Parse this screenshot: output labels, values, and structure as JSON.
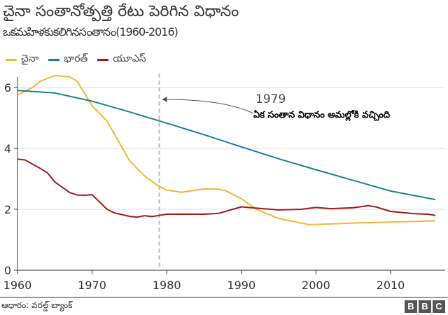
{
  "title": "చైనా సంతానోత్పత్తి రేటు పెరిగిన విధానం",
  "subtitle": "ఒకమహిళకుకలిగినసంతానం(1960-2016)",
  "source": "ఆధారం: వరల్డ్ బ్యాంక్",
  "logo": "BBC",
  "chart_data": {
    "type": "line",
    "xlim": [
      1960,
      2017
    ],
    "ylim": [
      0,
      6.5
    ],
    "xticks": [
      1960,
      1970,
      1980,
      1990,
      2000,
      2010
    ],
    "yticks": [
      0,
      2,
      4,
      6
    ],
    "grid": true,
    "legend": "top-left",
    "annotation": {
      "x": 1979,
      "year_label": "1979",
      "text": "ఏక సంతాన విధానం అమల్లోకి వచ్చింది"
    },
    "series": [
      {
        "name": "చైనా",
        "color": "#f2b632",
        "x": [
          1960,
          1962,
          1963,
          1965,
          1967,
          1968,
          1970,
          1972,
          1975,
          1977,
          1979,
          1980,
          1982,
          1985,
          1987,
          1988,
          1990,
          1992,
          1995,
          1999,
          2000,
          2005,
          2010,
          2016
        ],
        "y": [
          5.75,
          6.0,
          6.2,
          6.39,
          6.35,
          6.2,
          5.4,
          4.9,
          3.6,
          3.1,
          2.75,
          2.63,
          2.56,
          2.67,
          2.66,
          2.6,
          2.35,
          2.0,
          1.7,
          1.5,
          1.5,
          1.55,
          1.58,
          1.62
        ]
      },
      {
        "name": "భారత్",
        "color": "#1a7f9c",
        "x": [
          1960,
          1965,
          1970,
          1975,
          1980,
          1985,
          1990,
          1995,
          2000,
          2005,
          2010,
          2016
        ],
        "y": [
          5.9,
          5.82,
          5.55,
          5.2,
          4.83,
          4.45,
          4.05,
          3.66,
          3.3,
          2.95,
          2.6,
          2.32
        ]
      },
      {
        "name": "యూఎస్",
        "color": "#a01a1a",
        "x": [
          1960,
          1961,
          1963,
          1964,
          1965,
          1967,
          1968,
          1969,
          1970,
          1972,
          1973,
          1975,
          1976,
          1977,
          1978,
          1980,
          1985,
          1987,
          1990,
          1995,
          1998,
          2000,
          2002,
          2005,
          2007,
          2008,
          2010,
          2013,
          2015,
          2016
        ],
        "y": [
          3.65,
          3.62,
          3.35,
          3.2,
          2.9,
          2.55,
          2.47,
          2.46,
          2.48,
          2.0,
          1.88,
          1.77,
          1.74,
          1.79,
          1.76,
          1.84,
          1.84,
          1.87,
          2.08,
          1.98,
          2.0,
          2.06,
          2.02,
          2.05,
          2.12,
          2.08,
          1.93,
          1.86,
          1.84,
          1.8
        ]
      }
    ]
  }
}
